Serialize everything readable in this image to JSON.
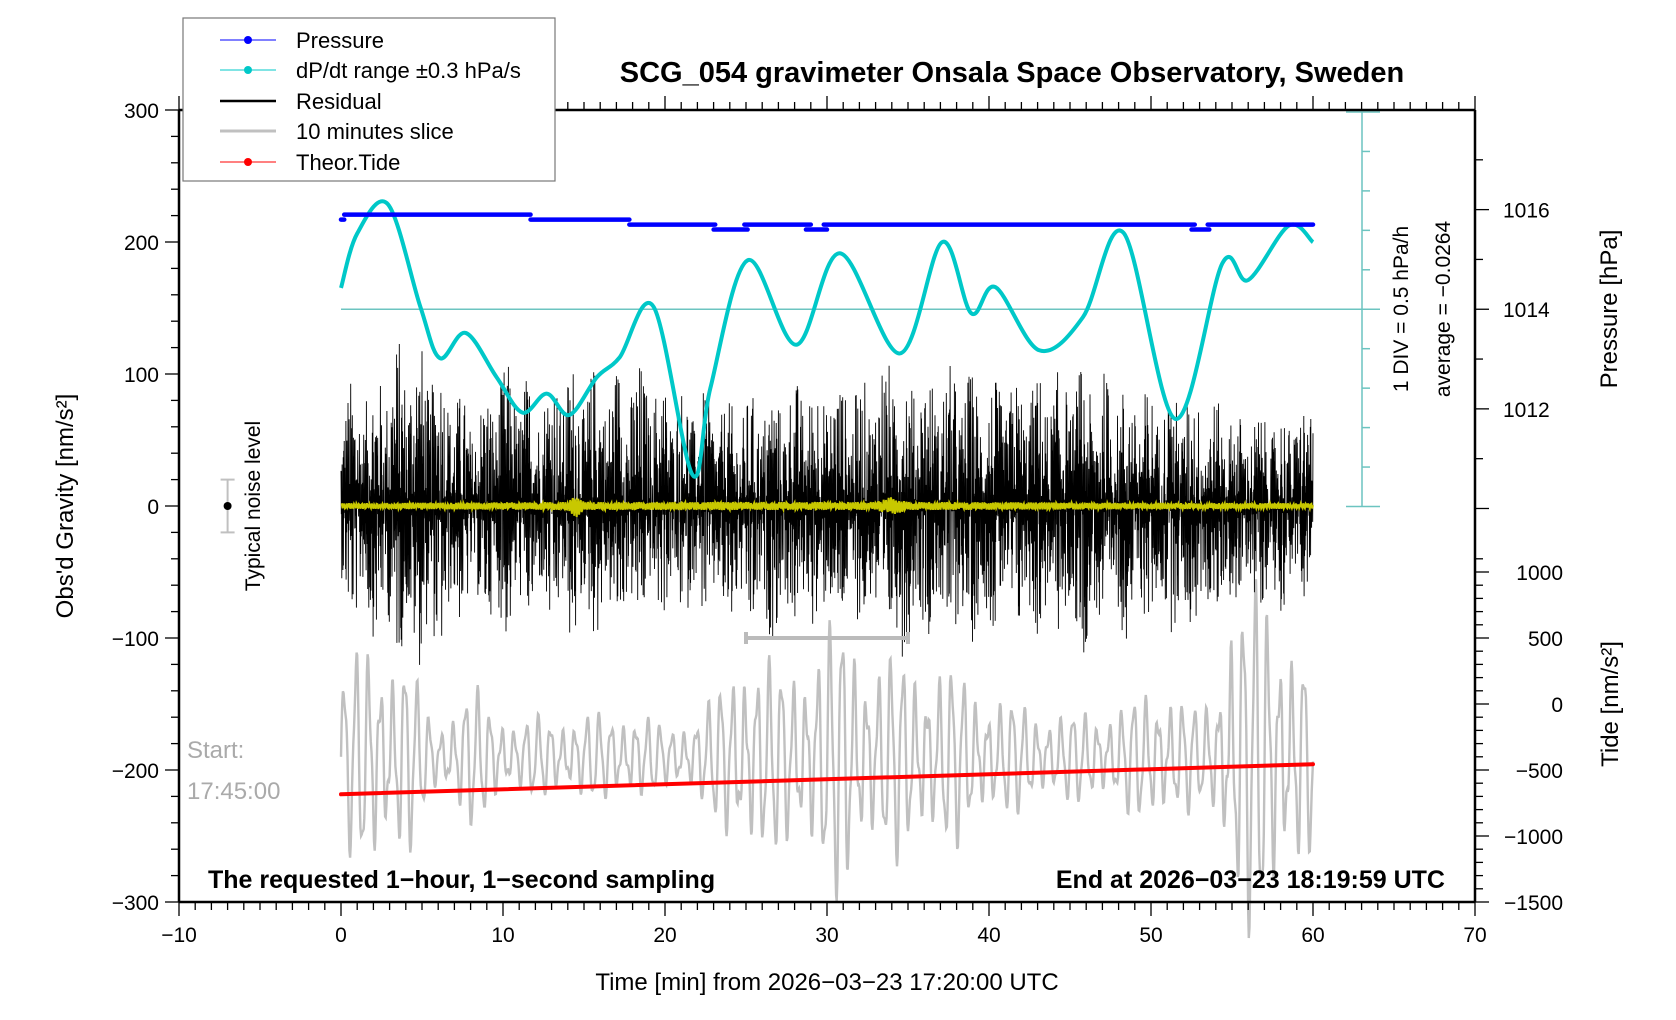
{
  "chart_data": {
    "type": "line",
    "title": "SCG_054 gravimeter Onsala Space Observatory, Sweden",
    "xlabel": "Time [min] from 2026−03−23 17:20:00 UTC",
    "ylabel_left": "Obs'd Gravity [nm/s²]",
    "ylabel_right_pressure": "Pressure [hPa]",
    "ylabel_right_tide": "Tide [nm/s²]",
    "xlim": [
      -10,
      70
    ],
    "ylim_gravity": [
      -300,
      300
    ],
    "ylim_pressure": [
      1002.1,
      1018
    ],
    "ylim_tide": [
      -1500,
      4500
    ],
    "x_ticks": [
      "−10",
      "0",
      "10",
      "20",
      "30",
      "40",
      "50",
      "60",
      "70"
    ],
    "gravity_ticks": [
      "−300",
      "−200",
      "−100",
      "0",
      "100",
      "200",
      "300"
    ],
    "pressure_ticks": [
      "1012",
      "1014",
      "1016"
    ],
    "tide_ticks": [
      "−1500",
      "−1000",
      "−500",
      "0",
      "500",
      "1000"
    ],
    "legend": {
      "placement": "top-left",
      "entries": [
        "Pressure",
        "dP/dt range ±0.3 hPa/s",
        "Residual",
        "10 minutes slice",
        "Theor.Tide"
      ]
    },
    "colors": {
      "pressure": "#0000ff",
      "dpdt": "#00c8c8",
      "residual": "#000000",
      "slice": "#c0c0c0",
      "tide": "#ff0000",
      "filtered": "#c8c800",
      "scale": "#6cc4c0"
    },
    "pressure_steps": [
      {
        "x": [
          0,
          0.2
        ],
        "hPa": 1015.8
      },
      {
        "x": [
          0.2,
          11.7
        ],
        "hPa": 1015.9
      },
      {
        "x": [
          11.7,
          17.8
        ],
        "hPa": 1015.8
      },
      {
        "x": [
          17.8,
          23.1
        ],
        "hPa": 1015.7
      },
      {
        "x": [
          23.0,
          25.1
        ],
        "hPa": 1015.6
      },
      {
        "x": [
          24.9,
          29.0
        ],
        "hPa": 1015.7
      },
      {
        "x": [
          28.7,
          30.0
        ],
        "hPa": 1015.6
      },
      {
        "x": [
          29.8,
          52.7
        ],
        "hPa": 1015.7
      },
      {
        "x": [
          52.5,
          53.6
        ],
        "hPa": 1015.6
      },
      {
        "x": [
          53.5,
          60.0
        ],
        "hPa": 1015.7
      }
    ],
    "dpdt": {
      "unit_note": "1 DIV = 0.5 hPa/h",
      "average_label": "average = −0.0264",
      "reference_hPa": 1014,
      "x": [
        0,
        1.0,
        2.9,
        4.9,
        6.1,
        7.7,
        9.6,
        11.2,
        12.7,
        14.1,
        15.8,
        17.2,
        19.3,
        21.7,
        22.8,
        25.1,
        28.1,
        30.8,
        34.5,
        37.1,
        38.9,
        40.4,
        43.1,
        45.8,
        48.3,
        51.5,
        54.4,
        56.0,
        58.5,
        60.0
      ],
      "y": [
        0.27,
        0.96,
        1.33,
        0.03,
        -0.62,
        -0.3,
        -0.86,
        -1.31,
        -1.07,
        -1.34,
        -0.86,
        -0.61,
        0.03,
        -2.1,
        -1.0,
        0.62,
        -0.45,
        0.71,
        -0.56,
        0.85,
        -0.05,
        0.28,
        -0.52,
        -0.1,
        0.97,
        -1.39,
        0.58,
        0.37,
        1.06,
        0.85
      ]
    },
    "residual_envelope": {
      "x": [
        0,
        2,
        4,
        6,
        8,
        10,
        12,
        14,
        16,
        18,
        20,
        22,
        24,
        26,
        28,
        30,
        32,
        34,
        36,
        38,
        40,
        42,
        44,
        46,
        48,
        50,
        52,
        54,
        56,
        58,
        60
      ],
      "max": [
        95,
        105,
        140,
        120,
        75,
        112,
        100,
        115,
        110,
        115,
        100,
        92,
        80,
        90,
        98,
        106,
        95,
        130,
        107,
        109,
        98,
        100,
        105,
        109,
        100,
        91,
        93,
        83,
        70,
        75,
        83
      ],
      "min": [
        -85,
        -100,
        -125,
        -120,
        -80,
        -105,
        -90,
        -110,
        -100,
        -95,
        -85,
        -85,
        -100,
        -105,
        -95,
        -100,
        -90,
        -130,
        -95,
        -115,
        -95,
        -105,
        -100,
        -115,
        -105,
        -90,
        -100,
        -90,
        -75,
        -80,
        -65
      ]
    },
    "filtered_near_zero": {
      "x": [
        0,
        14,
        14.5,
        15,
        33,
        34,
        35,
        60
      ],
      "amp": [
        2,
        3,
        9,
        3,
        3,
        7,
        3,
        2
      ]
    },
    "slice": {
      "center_gravity": -190,
      "period_min": 0.75,
      "x": [
        0,
        2,
        4,
        5,
        6,
        8,
        9,
        11,
        13,
        16,
        18,
        20,
        23,
        25,
        27,
        29,
        31,
        33,
        36,
        39,
        41,
        45,
        49,
        51,
        53,
        54,
        55,
        57,
        59,
        60
      ],
      "amp": [
        60,
        85,
        75,
        40,
        25,
        50,
        40,
        25,
        30,
        30,
        35,
        20,
        40,
        85,
        60,
        80,
        100,
        70,
        70,
        55,
        40,
        30,
        40,
        55,
        30,
        50,
        120,
        120,
        90,
        60
      ]
    },
    "slice_window": {
      "x": [
        25,
        35
      ],
      "gravity": -100
    },
    "tide": {
      "x": [
        0,
        60
      ],
      "y": [
        -684,
        -456
      ]
    },
    "noise_level": {
      "x": -7,
      "y": 0,
      "err": 20,
      "label": "Typical noise level"
    },
    "annotations": {
      "start_label": "Start:",
      "start_time": "17:45:00",
      "bottom_left": "The requested 1−hour, 1−second sampling",
      "bottom_right": "End at 2026−03−23 18:19:59 UTC"
    }
  }
}
